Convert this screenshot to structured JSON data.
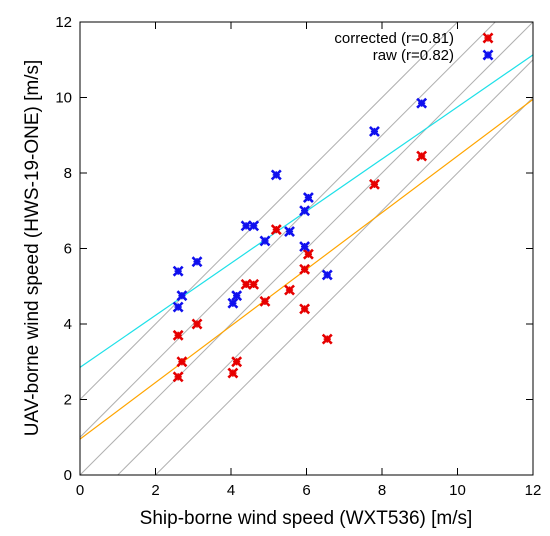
{
  "chart_data": {
    "type": "scatter",
    "title": "",
    "xlabel": "Ship-borne wind speed (WXT536) [m/s]",
    "ylabel": "UAV-borne wind speed (HWS-19-ONE) [m/s]",
    "xlim": [
      0,
      12
    ],
    "ylim": [
      0,
      12
    ],
    "x_ticks": [
      "0",
      "2",
      "4",
      "6",
      "8",
      "10",
      "12"
    ],
    "y_ticks": [
      "0",
      "2",
      "4",
      "6",
      "8",
      "10",
      "12"
    ],
    "grid": false,
    "legend_position": "top-right",
    "reference_lines": {
      "color": "#b0b0b0",
      "lines": [
        {
          "slope": 1,
          "intercept": 0
        },
        {
          "slope": 1,
          "intercept": 1
        },
        {
          "slope": 1,
          "intercept": -1
        },
        {
          "slope": 1,
          "intercept": 2
        },
        {
          "slope": 1,
          "intercept": -2
        }
      ]
    },
    "series": [
      {
        "name": "corrected (r=0.81)",
        "color": "#e60000",
        "marker": "x",
        "fit": {
          "slope": 0.75,
          "intercept": 0.95,
          "color": "#ffa500"
        },
        "points": [
          [
            2.6,
            2.6
          ],
          [
            2.6,
            3.7
          ],
          [
            2.7,
            3.0
          ],
          [
            3.1,
            4.0
          ],
          [
            4.05,
            2.7
          ],
          [
            4.15,
            3.0
          ],
          [
            4.4,
            5.05
          ],
          [
            4.6,
            5.05
          ],
          [
            4.9,
            4.6
          ],
          [
            5.2,
            6.5
          ],
          [
            5.55,
            4.9
          ],
          [
            5.95,
            4.4
          ],
          [
            5.95,
            5.45
          ],
          [
            6.05,
            5.85
          ],
          [
            6.55,
            3.6
          ],
          [
            7.8,
            7.7
          ],
          [
            9.05,
            8.45
          ]
        ]
      },
      {
        "name": "raw (r=0.82)",
        "color": "#1010ee",
        "marker": "x",
        "fit": {
          "slope": 0.69,
          "intercept": 2.85,
          "color": "#1ee0e8"
        },
        "points": [
          [
            2.6,
            5.4
          ],
          [
            2.6,
            4.45
          ],
          [
            2.7,
            4.75
          ],
          [
            3.1,
            5.65
          ],
          [
            4.05,
            4.55
          ],
          [
            4.15,
            4.75
          ],
          [
            4.4,
            6.6
          ],
          [
            4.6,
            6.6
          ],
          [
            4.9,
            6.2
          ],
          [
            5.2,
            7.95
          ],
          [
            5.55,
            6.45
          ],
          [
            5.95,
            7.0
          ],
          [
            5.95,
            6.05
          ],
          [
            6.05,
            7.35
          ],
          [
            6.55,
            5.3
          ],
          [
            7.8,
            9.1
          ],
          [
            9.05,
            9.85
          ]
        ]
      }
    ]
  }
}
